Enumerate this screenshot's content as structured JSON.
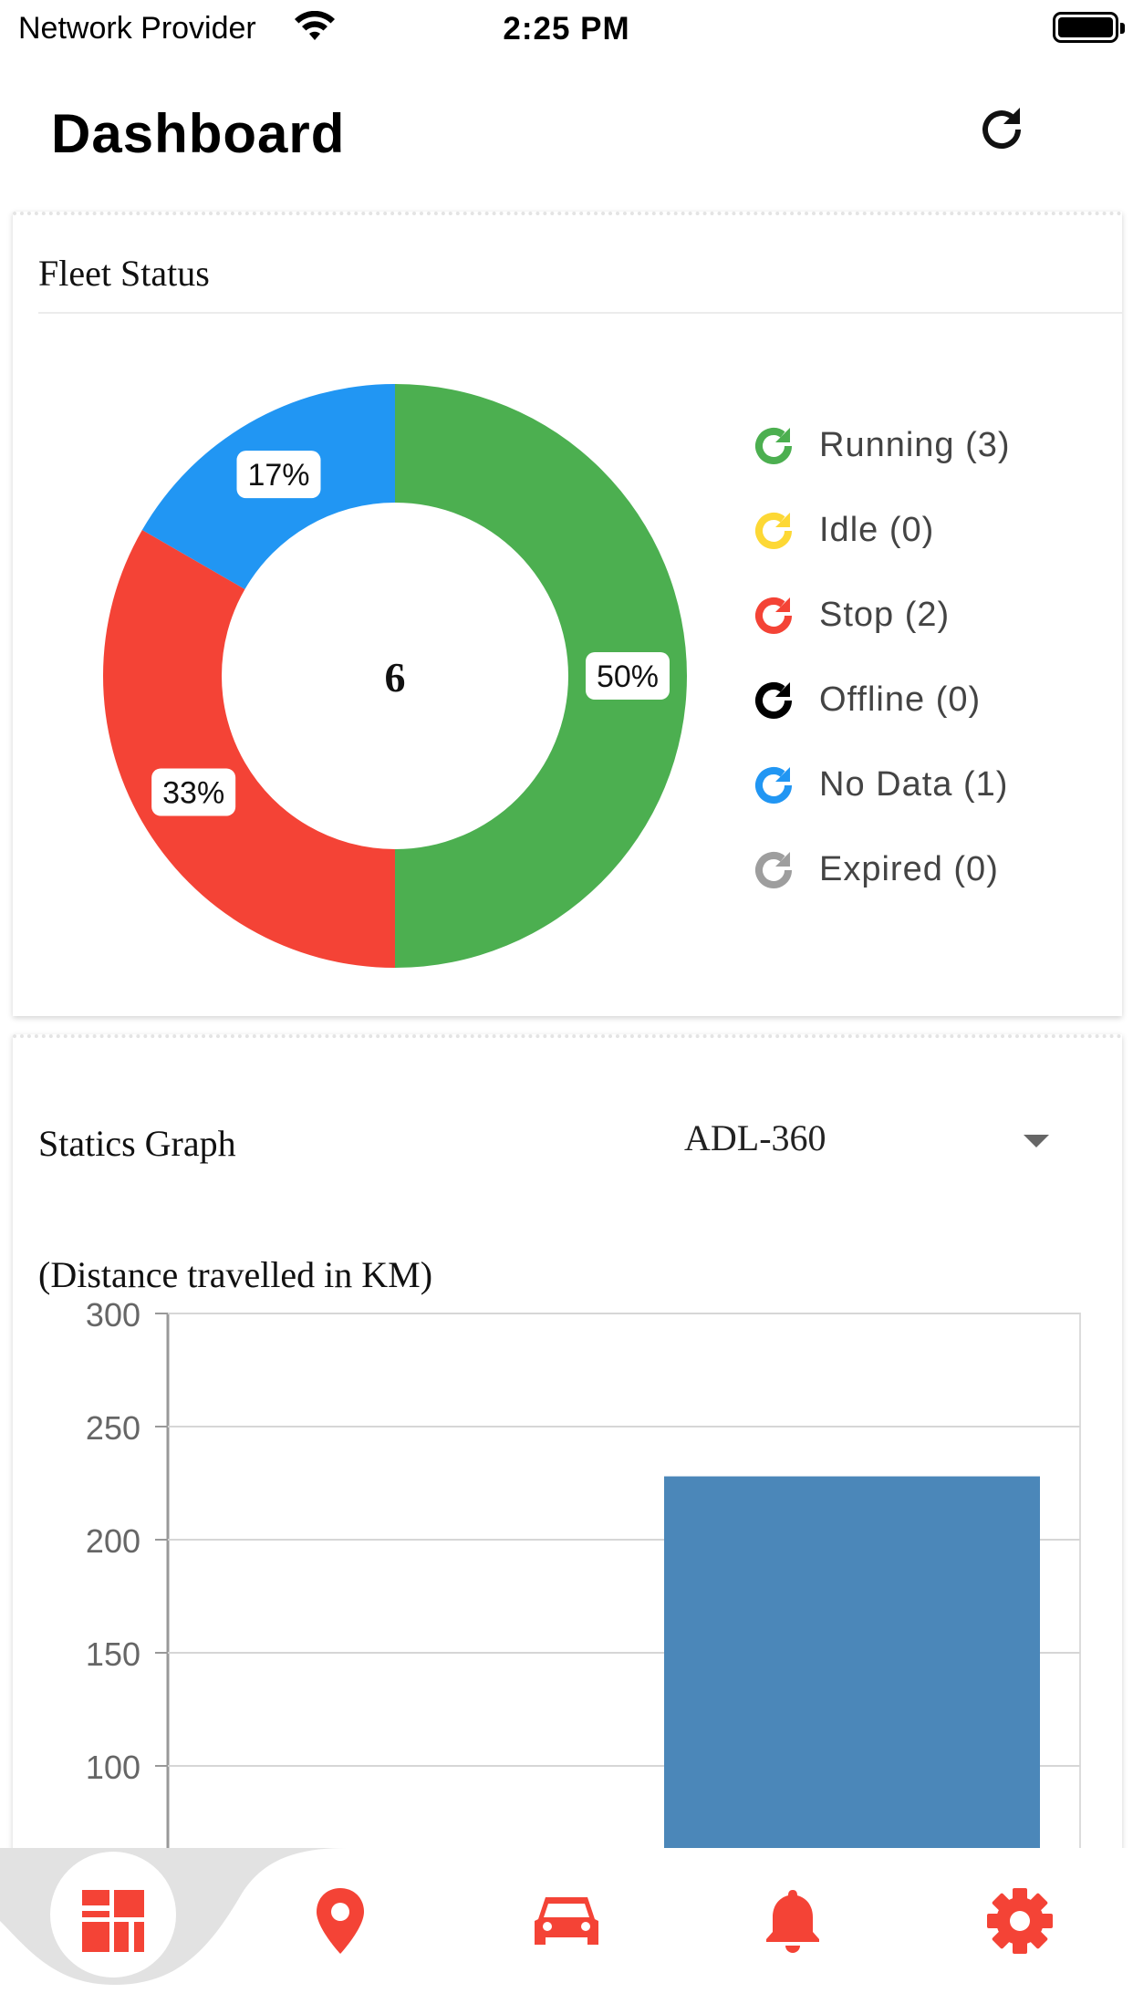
{
  "status_bar": {
    "carrier": "Network Provider",
    "time": "2:25 PM"
  },
  "header": {
    "title": "Dashboard",
    "refresh_icon": "refresh-icon"
  },
  "fleet_status": {
    "title": "Fleet Status",
    "center_total": "6",
    "legend": [
      {
        "label": "Running (3)",
        "color": "#4caf50",
        "icon": "running-status-icon"
      },
      {
        "label": "Idle (0)",
        "color": "#fdd835",
        "icon": "idle-status-icon"
      },
      {
        "label": "Stop (2)",
        "color": "#f44336",
        "icon": "stop-status-icon"
      },
      {
        "label": "Offline (0)",
        "color": "#000000",
        "icon": "offline-status-icon"
      },
      {
        "label": "No Data (1)",
        "color": "#2196f3",
        "icon": "no-data-status-icon"
      },
      {
        "label": "Expired (0)",
        "color": "#9e9e9e",
        "icon": "expired-status-icon"
      }
    ]
  },
  "statics_graph": {
    "title": "Statics Graph",
    "vehicle_select": "ADL-360",
    "subtitle": "(Distance travelled in KM)"
  },
  "chart_data": [
    {
      "type": "pie",
      "donut": true,
      "center_label": "6",
      "slices": [
        {
          "value": 3,
          "percent_label": "50%",
          "color": "#4caf50"
        },
        {
          "value": 2,
          "percent_label": "33%",
          "color": "#f44336"
        },
        {
          "value": 1,
          "percent_label": "17%",
          "color": "#2196f3"
        }
      ]
    },
    {
      "type": "bar",
      "y_ticks": [
        "300",
        "250",
        "200",
        "150",
        "100"
      ],
      "ylim_visible": [
        100,
        300
      ],
      "bars": [
        {
          "slot": 2,
          "slots": 2,
          "value": 228,
          "color": "#4b87b9"
        }
      ],
      "grid": true
    }
  ],
  "bottom_nav": {
    "active": "dashboard",
    "items": [
      {
        "name": "dashboard",
        "icon": "dashboard-icon",
        "color": "#f44336"
      },
      {
        "name": "map",
        "icon": "location-pin-icon",
        "color": "#f44336"
      },
      {
        "name": "vehicles",
        "icon": "car-icon",
        "color": "#f44336"
      },
      {
        "name": "alerts",
        "icon": "bell-icon",
        "color": "#f44336"
      },
      {
        "name": "settings",
        "icon": "gear-icon",
        "color": "#f44336"
      }
    ]
  }
}
